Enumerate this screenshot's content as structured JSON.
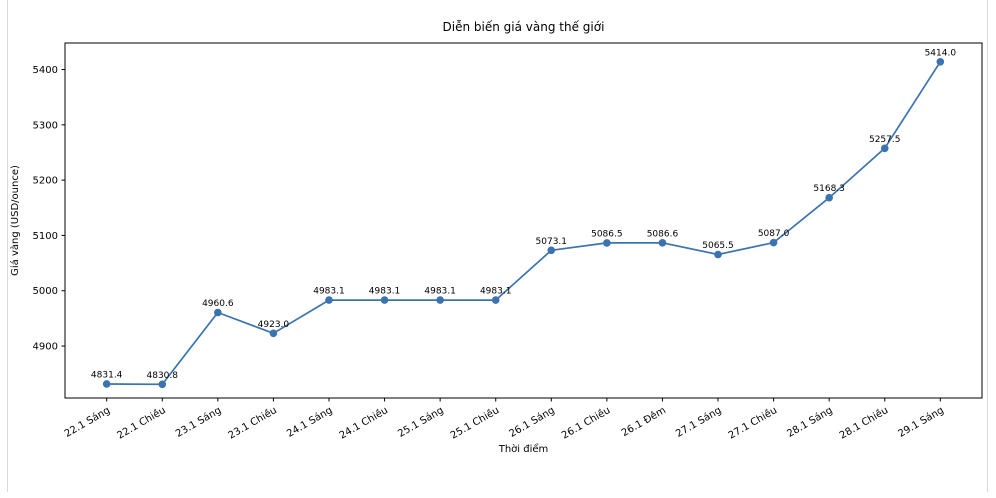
{
  "page": {
    "background_color": "#ffffff",
    "edge_color": "#d9d9d9"
  },
  "chart_data": {
    "type": "line",
    "title": "Diễn biến giá vàng thế giới",
    "xlabel": "Thời điểm",
    "ylabel": "Giá vàng (USD/ounce)",
    "categories": [
      "22.1 Sáng",
      "22.1 Chiều",
      "23.1 Sáng",
      "23.1 Chiều",
      "24.1 Sáng",
      "24.1 Chiều",
      "25.1 Sáng",
      "25.1 Chiều",
      "26.1 Sáng",
      "26.1 Chiều",
      "26.1 Đêm",
      "27.1 Sáng",
      "27.1 Chiều",
      "28.1 Sáng",
      "28.1 Chiều",
      "29.1 Sáng"
    ],
    "values": [
      4831.4,
      4830.8,
      4960.6,
      4923.0,
      4983.1,
      4983.1,
      4983.1,
      4983.1,
      5073.1,
      5086.5,
      5086.6,
      5065.5,
      5087.0,
      5168.3,
      5257.5,
      5414.0
    ],
    "point_labels": [
      "4831.4",
      "4830.8",
      "4960.6",
      "4923.0",
      "4983.1",
      "4983.1",
      "4983.1",
      "4983.1",
      "5073.1",
      "5086.5",
      "5086.6",
      "5065.5",
      "5087.0",
      "5168.3",
      "5257.5",
      "5414.0"
    ],
    "yticks": [
      4900,
      5000,
      5100,
      5200,
      5300,
      5400
    ],
    "ylim": [
      4806,
      5448
    ],
    "x_tick_rotation_deg": 30,
    "line_color": "#3b73ae",
    "marker": "circle",
    "marker_color": "#3b73ae",
    "spine_color": "#000000",
    "grid": false,
    "legend": "none"
  }
}
